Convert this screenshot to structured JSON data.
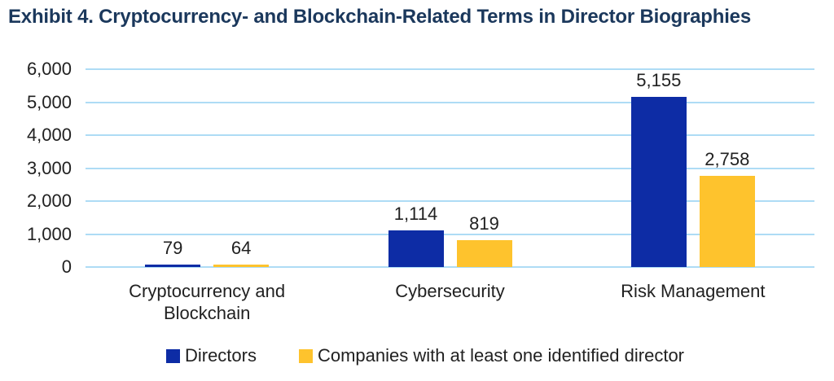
{
  "title": "Exhibit 4. Cryptocurrency- and Blockchain-Related Terms in Director Biographies",
  "colors": {
    "title_text": "#1b385c",
    "axis_text": "#212121",
    "label_text": "#212121",
    "gridline": "#aedcf5",
    "background": "#ffffff",
    "series_directors": "#0d2ca5",
    "series_companies": "#fec32d"
  },
  "chart_data": {
    "type": "bar",
    "title": "Exhibit 4. Cryptocurrency- and Blockchain-Related Terms in Director Biographies",
    "categories": [
      "Cryptocurrency and Blockchain",
      "Cybersecurity",
      "Risk Management"
    ],
    "series": [
      {
        "name": "Directors",
        "key": "directors",
        "color": "#0d2ca5",
        "values": [
          79,
          1114,
          5155
        ],
        "value_labels": [
          "79",
          "1,114",
          "5,155"
        ]
      },
      {
        "name": "Companies with at least one identified director",
        "key": "companies",
        "color": "#fec32d",
        "values": [
          64,
          819,
          2758
        ],
        "value_labels": [
          "64",
          "819",
          "2,758"
        ]
      }
    ],
    "xlabel": "",
    "ylabel": "",
    "ylim": [
      0,
      6000
    ],
    "ytick_step": 1000,
    "ytick_labels": [
      "0",
      "1,000",
      "2,000",
      "3,000",
      "4,000",
      "5,000",
      "6,000"
    ],
    "grid": true,
    "legend_position": "bottom"
  }
}
